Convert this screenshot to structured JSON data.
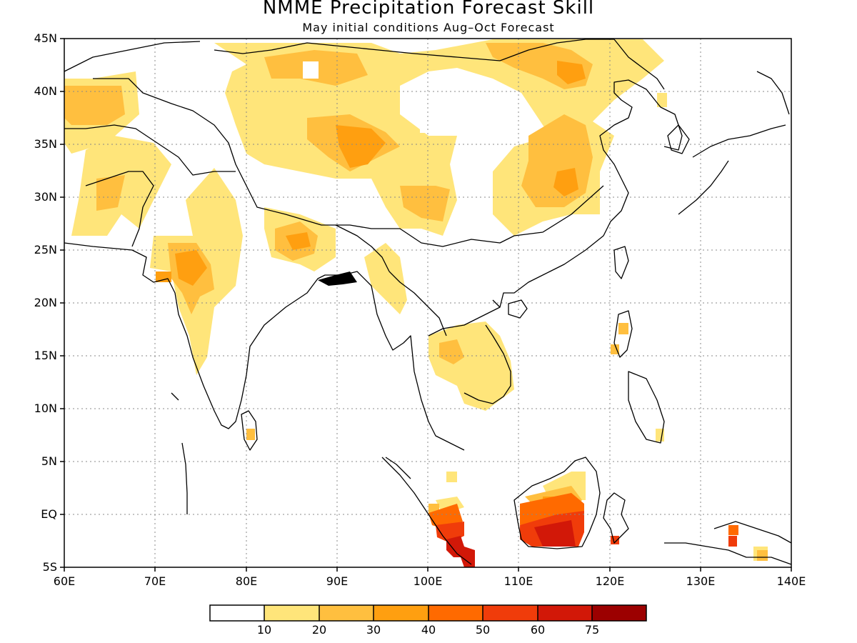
{
  "title": "NMME Precipitation Forecast Skill",
  "subtitle": "May initial conditions  Aug–Oct Forecast",
  "lat_labels": [
    "45N",
    "40N",
    "35N",
    "30N",
    "25N",
    "20N",
    "15N",
    "10N",
    "5N",
    "EQ",
    "5S"
  ],
  "lon_labels": [
    "60E",
    "70E",
    "80E",
    "90E",
    "100E",
    "110E",
    "120E",
    "130E",
    "140E"
  ],
  "colorbar": {
    "labels": [
      "10",
      "20",
      "30",
      "40",
      "50",
      "60",
      "75"
    ],
    "colors": [
      "#ffffff",
      "#ffe57a",
      "#ffbf3f",
      "#ff9f10",
      "#ff6a00",
      "#f03c0a",
      "#d21808",
      "#9c0000"
    ]
  }
}
